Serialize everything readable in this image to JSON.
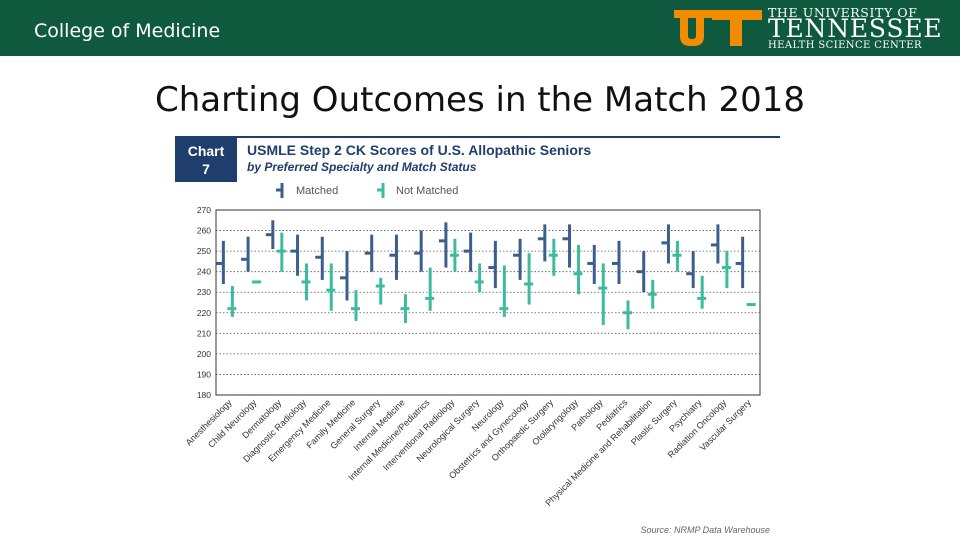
{
  "header": {
    "college": "College of Medicine",
    "logo": {
      "line1": "THE UNIVERSITY OF",
      "line2": "TENNESSEE",
      "line3": "HEALTH SCIENCE CENTER",
      "ut_mark": "UT",
      "ut_color": "#f28c00"
    },
    "bar_color": "#0f5a3e"
  },
  "slide_title": "Charting Outcomes in the Match 2018",
  "chart_data": {
    "type": "range",
    "badge": {
      "word": "Chart",
      "number": "7"
    },
    "title": "USMLE Step 2 CK Scores of U.S. Allopathic Seniors",
    "subtitle": "by Preferred Specialty and Match Status",
    "source": "Source: NRMP Data Warehouse",
    "ylim": [
      180,
      270
    ],
    "yticks": [
      "270",
      "260",
      "250",
      "240",
      "230",
      "220",
      "210",
      "200",
      "190",
      "180"
    ],
    "grid": true,
    "legend_position": "top-left",
    "colors": {
      "matched": "#3b5e8c",
      "not_matched": "#3cbc9c",
      "badge": "#1f3e6e"
    },
    "categories": [
      "Anesthesiology",
      "Child Neurology",
      "Dermatology",
      "Diagnostic Radiology",
      "Emergency Medicine",
      "Family Medicine",
      "General Surgery",
      "Internal Medicine",
      "Internal Medicine/Pediatrics",
      "Interventional Radiology",
      "Neurological Surgery",
      "Neurology",
      "Obstetrics and Gynecology",
      "Orthopaedic Surgery",
      "Otolaryngology",
      "Pathology",
      "Pediatrics",
      "Physical Medicine and Rehabilitation",
      "Plastic Surgery",
      "Psychiatry",
      "Radiation Oncology",
      "Vascular Surgery"
    ],
    "series": [
      {
        "name": "Matched",
        "low": [
          234,
          240,
          251,
          238,
          236,
          226,
          240,
          236,
          240,
          242,
          240,
          232,
          236,
          245,
          242,
          234,
          234,
          230,
          244,
          232,
          244,
          232
        ],
        "high": [
          255,
          257,
          265,
          258,
          257,
          250,
          258,
          258,
          260,
          264,
          259,
          255,
          256,
          263,
          263,
          253,
          255,
          250,
          263,
          250,
          263,
          257
        ],
        "median": [
          244,
          246,
          258,
          250,
          247,
          237,
          249,
          248,
          249,
          255,
          250,
          242,
          248,
          256,
          256,
          244,
          244,
          240,
          254,
          239,
          253,
          244
        ]
      },
      {
        "name": "Not Matched",
        "low": [
          218,
          null,
          240,
          226,
          221,
          216,
          224,
          215,
          221,
          240,
          230,
          218,
          224,
          238,
          229,
          214,
          212,
          222,
          240,
          222,
          232,
          null
        ],
        "high": [
          233,
          null,
          259,
          244,
          244,
          231,
          237,
          229,
          242,
          256,
          244,
          243,
          249,
          256,
          253,
          244,
          226,
          236,
          255,
          238,
          250,
          null
        ],
        "median": [
          222,
          235,
          250,
          235,
          231,
          222,
          233,
          222,
          227,
          248,
          235,
          222,
          234,
          248,
          239,
          232,
          220,
          229,
          248,
          227,
          242,
          224
        ]
      }
    ]
  }
}
